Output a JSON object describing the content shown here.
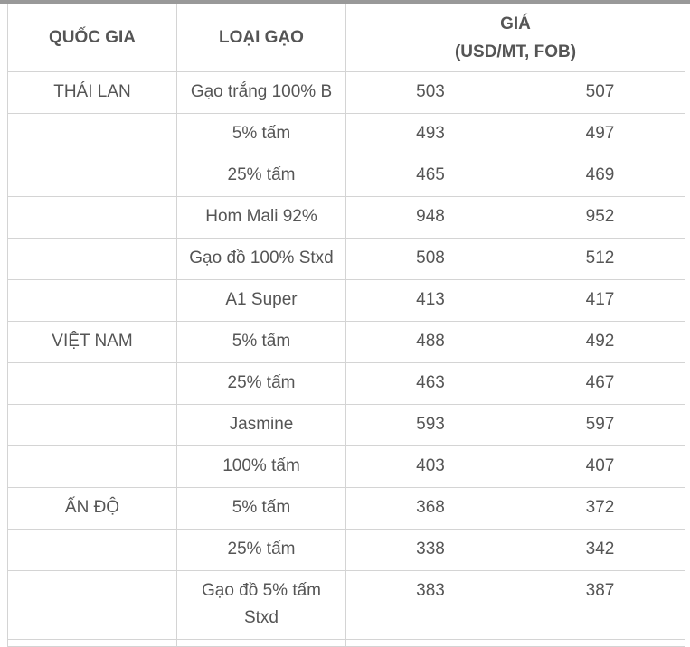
{
  "table": {
    "header": {
      "country": "QUỐC GIA",
      "type": "LOẠI  GẠO",
      "price": [
        "GIÁ",
        "(USD/MT, FOB)"
      ]
    },
    "rows": [
      [
        "THÁI LAN",
        "Gạo trắng 100% B",
        503,
        507
      ],
      [
        null,
        "5% tấm",
        493,
        497
      ],
      [
        null,
        "25% tấm",
        465,
        469
      ],
      [
        null,
        "Hom Mali 92%",
        948,
        952
      ],
      [
        null,
        "Gạo đồ 100% Stxd",
        508,
        512
      ],
      [
        null,
        "A1 Super",
        413,
        417
      ],
      [
        "VIỆT NAM",
        "5% tấm",
        488,
        492
      ],
      [
        null,
        "25% tấm",
        463,
        467
      ],
      [
        null,
        "Jasmine",
        593,
        597
      ],
      [
        null,
        "100% tấm",
        403,
        407
      ],
      [
        "ẤN ĐỘ",
        "5% tấm",
        368,
        372
      ],
      [
        null,
        "25% tấm",
        338,
        342
      ],
      [
        null,
        "Gạo đồ 5% tấm Stxd",
        383,
        387
      ]
    ]
  }
}
